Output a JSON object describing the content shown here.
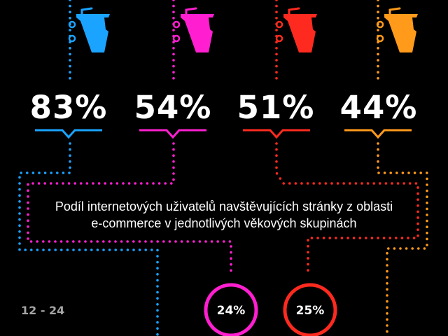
{
  "chart_data": {
    "type": "infographic",
    "colors": [
      "#1aa3ff",
      "#ff1fd0",
      "#ff2a1f",
      "#ff9a1a"
    ],
    "top_values": [
      {
        "label": "83%",
        "value": 83
      },
      {
        "label": "54%",
        "value": 54
      },
      {
        "label": "51%",
        "value": 51
      },
      {
        "label": "44%",
        "value": 44
      }
    ],
    "caption": {
      "line1": "Podíl internetových uživatelů navštěvujících stránky z oblasti",
      "line2": "e-commerce v jednotlivých věkových skupinách"
    },
    "age_group_label": "12 - 24",
    "bottom_values": [
      {
        "label": "24%",
        "value": 24,
        "color": "#ff1fd0"
      },
      {
        "label": "25%",
        "value": 25,
        "color": "#ff2a1f"
      }
    ],
    "icon": "shopping-bag-on-hook-icon"
  }
}
